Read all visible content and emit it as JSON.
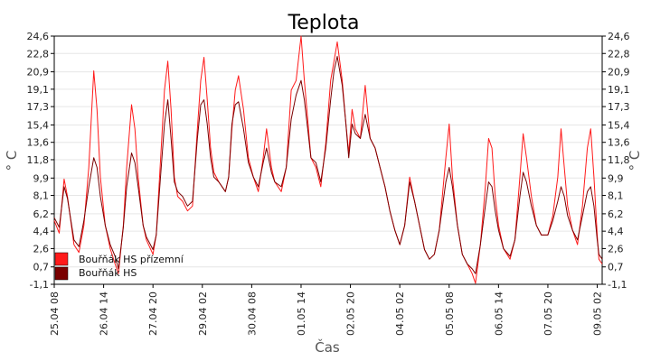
{
  "chart_data": {
    "type": "line",
    "title": "Teplota",
    "xlabel": "Čas",
    "ylabel_left": "° C",
    "ylabel_right": "° C",
    "y_ticks": [
      "24,6",
      "22,8",
      "20,9",
      "19,1",
      "17,3",
      "15,4",
      "13,6",
      "11,8",
      "9,9",
      "8,1",
      "6,2",
      "4,4",
      "2,6",
      "0,7",
      "-1,1"
    ],
    "y_tick_values": [
      24.6,
      22.8,
      20.9,
      19.1,
      17.3,
      15.4,
      13.6,
      11.8,
      9.9,
      8.1,
      6.2,
      4.4,
      2.6,
      0.7,
      -1.1
    ],
    "ylim": [
      -1.1,
      24.6
    ],
    "x_ticks": [
      "25.04 08",
      "26.04 14",
      "27.04 20",
      "29.04 02",
      "30.04 08",
      "01.05 14",
      "02.05 20",
      "04.05 02",
      "05.05 08",
      "06.05 14",
      "07.05 20",
      "09.05 02"
    ],
    "x_tick_hours": [
      0,
      30,
      60,
      90,
      120,
      150,
      180,
      210,
      240,
      270,
      300,
      330
    ],
    "xlim_hours": [
      0,
      333
    ],
    "grid": true,
    "legend_position": "bottom-left",
    "series": [
      {
        "name": "Bouřňák HS přízemní",
        "color": "#ff1a1a",
        "points": [
          [
            0,
            5.5
          ],
          [
            3,
            4.2
          ],
          [
            6,
            9.8
          ],
          [
            8,
            8.0
          ],
          [
            12,
            3.0
          ],
          [
            15,
            2.2
          ],
          [
            18,
            5.0
          ],
          [
            21,
            11.0
          ],
          [
            24,
            21.0
          ],
          [
            26,
            17.0
          ],
          [
            28,
            10.0
          ],
          [
            31,
            5.0
          ],
          [
            34,
            2.6
          ],
          [
            37,
            1.0
          ],
          [
            39,
            0.0
          ],
          [
            42,
            5.0
          ],
          [
            44,
            11.0
          ],
          [
            47,
            17.5
          ],
          [
            49,
            15.0
          ],
          [
            51,
            10.0
          ],
          [
            54,
            5.0
          ],
          [
            56,
            3.5
          ],
          [
            60,
            2.0
          ],
          [
            62,
            4.0
          ],
          [
            65,
            13.0
          ],
          [
            67,
            19.0
          ],
          [
            69,
            22.0
          ],
          [
            71,
            17.0
          ],
          [
            73,
            10.0
          ],
          [
            75,
            8.0
          ],
          [
            78,
            7.5
          ],
          [
            81,
            6.5
          ],
          [
            84,
            7.0
          ],
          [
            87,
            15.0
          ],
          [
            89,
            20.0
          ],
          [
            91,
            22.4
          ],
          [
            93,
            18.0
          ],
          [
            95,
            13.0
          ],
          [
            97,
            10.5
          ],
          [
            100,
            9.5
          ],
          [
            104,
            8.5
          ],
          [
            106,
            10.0
          ],
          [
            108,
            15.0
          ],
          [
            110,
            19.0
          ],
          [
            112,
            20.5
          ],
          [
            115,
            17.0
          ],
          [
            118,
            12.0
          ],
          [
            121,
            10.0
          ],
          [
            124,
            8.5
          ],
          [
            127,
            12.0
          ],
          [
            129,
            15.0
          ],
          [
            132,
            11.0
          ],
          [
            134,
            9.5
          ],
          [
            138,
            8.5
          ],
          [
            141,
            11.0
          ],
          [
            144,
            19.0
          ],
          [
            147,
            20.0
          ],
          [
            150,
            24.6
          ],
          [
            152,
            20.0
          ],
          [
            154,
            16.0
          ],
          [
            156,
            12.0
          ],
          [
            159,
            11.0
          ],
          [
            162,
            9.0
          ],
          [
            165,
            13.5
          ],
          [
            168,
            20.0
          ],
          [
            170,
            22.0
          ],
          [
            172,
            24.0
          ],
          [
            175,
            20.0
          ],
          [
            177,
            16.0
          ],
          [
            179,
            12.5
          ],
          [
            181,
            17.0
          ],
          [
            183,
            15.0
          ],
          [
            186,
            14.0
          ],
          [
            189,
            19.5
          ],
          [
            192,
            14.0
          ],
          [
            195,
            13.0
          ],
          [
            198,
            11.0
          ],
          [
            201,
            9.0
          ],
          [
            204,
            6.5
          ],
          [
            207,
            4.5
          ],
          [
            210,
            3.0
          ],
          [
            213,
            5.0
          ],
          [
            216,
            10.0
          ],
          [
            219,
            7.5
          ],
          [
            222,
            5.0
          ],
          [
            225,
            2.5
          ],
          [
            228,
            1.5
          ],
          [
            231,
            2.0
          ],
          [
            234,
            4.5
          ],
          [
            238,
            12.0
          ],
          [
            240,
            15.5
          ],
          [
            242,
            10.0
          ],
          [
            245,
            5.0
          ],
          [
            248,
            2.0
          ],
          [
            251,
            1.0
          ],
          [
            254,
            0.0
          ],
          [
            256,
            -1.0
          ],
          [
            259,
            3.0
          ],
          [
            262,
            9.0
          ],
          [
            264,
            14.0
          ],
          [
            266,
            13.0
          ],
          [
            268,
            8.0
          ],
          [
            270,
            5.0
          ],
          [
            273,
            2.6
          ],
          [
            277,
            1.5
          ],
          [
            280,
            3.5
          ],
          [
            283,
            10.0
          ],
          [
            285,
            14.5
          ],
          [
            287,
            12.0
          ],
          [
            290,
            8.0
          ],
          [
            293,
            5.0
          ],
          [
            296,
            4.0
          ],
          [
            300,
            4.0
          ],
          [
            303,
            6.0
          ],
          [
            306,
            10.0
          ],
          [
            308,
            15.0
          ],
          [
            310,
            11.0
          ],
          [
            312,
            7.0
          ],
          [
            315,
            4.5
          ],
          [
            318,
            3.0
          ],
          [
            321,
            7.0
          ],
          [
            324,
            13.0
          ],
          [
            326,
            15.0
          ],
          [
            328,
            10.0
          ],
          [
            330,
            4.0
          ],
          [
            331,
            1.5
          ],
          [
            333,
            1.0
          ]
        ]
      },
      {
        "name": "Bouřňák HS",
        "color": "#7a0000",
        "points": [
          [
            0,
            5.8
          ],
          [
            3,
            4.8
          ],
          [
            6,
            9.0
          ],
          [
            8,
            7.8
          ],
          [
            12,
            3.5
          ],
          [
            15,
            2.8
          ],
          [
            18,
            5.5
          ],
          [
            21,
            9.0
          ],
          [
            24,
            12.0
          ],
          [
            26,
            11.0
          ],
          [
            28,
            8.0
          ],
          [
            31,
            5.0
          ],
          [
            34,
            3.0
          ],
          [
            37,
            1.8
          ],
          [
            39,
            0.5
          ],
          [
            42,
            4.8
          ],
          [
            44,
            9.0
          ],
          [
            47,
            12.5
          ],
          [
            49,
            11.5
          ],
          [
            51,
            9.0
          ],
          [
            54,
            5.0
          ],
          [
            56,
            3.8
          ],
          [
            60,
            2.5
          ],
          [
            62,
            4.0
          ],
          [
            65,
            11.0
          ],
          [
            67,
            15.5
          ],
          [
            69,
            18.0
          ],
          [
            71,
            14.0
          ],
          [
            73,
            9.5
          ],
          [
            75,
            8.5
          ],
          [
            78,
            8.0
          ],
          [
            81,
            7.0
          ],
          [
            84,
            7.5
          ],
          [
            87,
            14.0
          ],
          [
            89,
            17.5
          ],
          [
            91,
            18.0
          ],
          [
            93,
            15.5
          ],
          [
            95,
            12.0
          ],
          [
            97,
            10.0
          ],
          [
            100,
            9.5
          ],
          [
            104,
            8.5
          ],
          [
            106,
            10.0
          ],
          [
            108,
            15.5
          ],
          [
            110,
            17.5
          ],
          [
            112,
            17.8
          ],
          [
            115,
            15.0
          ],
          [
            118,
            11.5
          ],
          [
            121,
            10.0
          ],
          [
            124,
            9.0
          ],
          [
            127,
            11.5
          ],
          [
            129,
            13.0
          ],
          [
            132,
            10.5
          ],
          [
            134,
            9.5
          ],
          [
            138,
            9.0
          ],
          [
            141,
            11.0
          ],
          [
            144,
            16.0
          ],
          [
            147,
            18.5
          ],
          [
            150,
            20.0
          ],
          [
            152,
            18.0
          ],
          [
            154,
            15.0
          ],
          [
            156,
            12.0
          ],
          [
            159,
            11.5
          ],
          [
            162,
            9.5
          ],
          [
            165,
            13.0
          ],
          [
            168,
            18.0
          ],
          [
            170,
            21.0
          ],
          [
            172,
            22.5
          ],
          [
            175,
            19.5
          ],
          [
            177,
            16.0
          ],
          [
            179,
            12.0
          ],
          [
            181,
            15.5
          ],
          [
            183,
            14.5
          ],
          [
            186,
            14.0
          ],
          [
            189,
            16.5
          ],
          [
            192,
            14.0
          ],
          [
            195,
            13.0
          ],
          [
            198,
            11.0
          ],
          [
            201,
            9.0
          ],
          [
            204,
            6.5
          ],
          [
            207,
            4.5
          ],
          [
            210,
            3.0
          ],
          [
            213,
            5.0
          ],
          [
            216,
            9.5
          ],
          [
            219,
            7.5
          ],
          [
            222,
            5.0
          ],
          [
            225,
            2.5
          ],
          [
            228,
            1.5
          ],
          [
            231,
            2.0
          ],
          [
            234,
            4.5
          ],
          [
            238,
            9.5
          ],
          [
            240,
            11.0
          ],
          [
            242,
            9.0
          ],
          [
            245,
            5.0
          ],
          [
            248,
            2.0
          ],
          [
            251,
            1.0
          ],
          [
            254,
            0.5
          ],
          [
            256,
            0.0
          ],
          [
            259,
            3.0
          ],
          [
            262,
            7.0
          ],
          [
            264,
            9.5
          ],
          [
            266,
            9.0
          ],
          [
            268,
            6.5
          ],
          [
            270,
            4.5
          ],
          [
            273,
            2.6
          ],
          [
            277,
            1.8
          ],
          [
            280,
            3.5
          ],
          [
            283,
            8.0
          ],
          [
            285,
            10.5
          ],
          [
            287,
            9.5
          ],
          [
            290,
            7.0
          ],
          [
            293,
            5.0
          ],
          [
            296,
            4.0
          ],
          [
            300,
            4.0
          ],
          [
            303,
            5.5
          ],
          [
            306,
            7.5
          ],
          [
            308,
            9.0
          ],
          [
            310,
            8.0
          ],
          [
            312,
            6.0
          ],
          [
            315,
            4.5
          ],
          [
            318,
            3.5
          ],
          [
            321,
            6.0
          ],
          [
            324,
            8.5
          ],
          [
            326,
            9.0
          ],
          [
            328,
            7.0
          ],
          [
            330,
            3.5
          ],
          [
            331,
            2.0
          ],
          [
            333,
            1.5
          ]
        ]
      }
    ]
  }
}
